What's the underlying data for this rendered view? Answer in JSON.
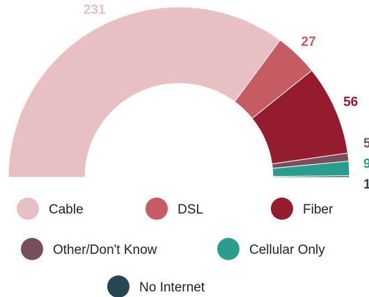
{
  "chart_data": {
    "type": "semi-donut",
    "categories": [
      "Cable",
      "DSL",
      "Fiber",
      "Other/Don't Know",
      "Cellular Only",
      "No Internet"
    ],
    "values": [
      231,
      27,
      56,
      5,
      9,
      1
    ],
    "colors": [
      "#e8bfc3",
      "#c65b63",
      "#951c2f",
      "#7a4f5c",
      "#2a9d8f",
      "#264653"
    ],
    "legend": "bottom"
  }
}
